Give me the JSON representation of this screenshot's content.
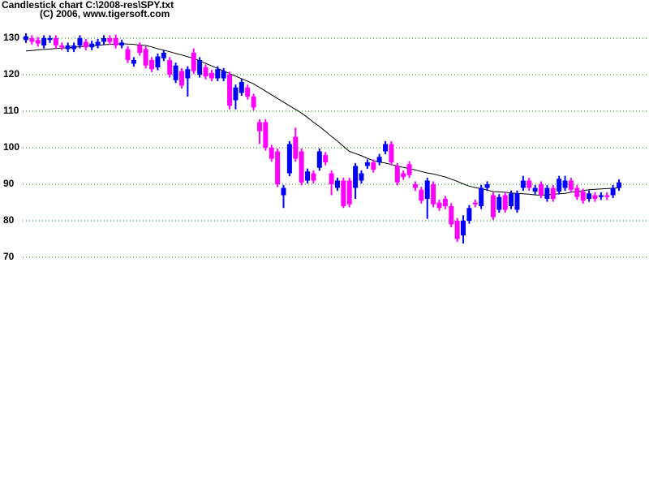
{
  "chart_data": {
    "type": "candlestick",
    "title": "Candlestick chart C:\\2008-res\\SPY.txt",
    "subtitle": "(C) 2006, www.tigersoft.com",
    "up_color": "#0000ff",
    "down_color": "#ff00ff",
    "ma_color": "#000000",
    "grid": true,
    "grid_color": "#008000",
    "ylim": [
      70,
      130
    ],
    "yticks": [
      70,
      80,
      90,
      100,
      110,
      120,
      130
    ],
    "open": [
      129.5,
      130,
      129.5,
      128,
      129.5,
      130,
      128,
      127,
      127,
      128,
      129,
      127.5,
      128,
      129,
      130,
      130,
      128,
      127,
      123,
      128,
      127,
      124,
      122,
      124.5,
      124,
      118.5,
      121,
      119,
      126,
      120,
      122,
      120.5,
      119,
      119,
      120,
      113,
      115,
      116.5,
      114,
      107,
      107,
      100,
      99,
      87,
      93,
      103,
      99,
      91,
      93,
      94.5,
      98,
      93,
      89,
      91,
      91,
      89,
      91,
      95,
      96,
      96,
      99,
      101,
      95,
      93,
      95.5,
      90,
      88.5,
      86,
      90,
      85,
      86,
      84,
      80,
      76,
      80,
      85,
      84,
      89,
      87,
      83,
      87,
      84,
      83,
      89,
      91,
      88,
      90,
      86,
      89,
      88,
      89,
      91,
      89,
      88,
      86,
      87,
      86.5,
      87,
      87,
      89
    ],
    "high": [
      131.3,
      130.8,
      130.3,
      130.8,
      130.8,
      130.8,
      128.8,
      128.8,
      128.8,
      130.8,
      129.8,
      129.3,
      129.8,
      130.8,
      130.8,
      131,
      129.6,
      127.8,
      124.8,
      128.8,
      127.8,
      124.8,
      125.8,
      126.8,
      124.8,
      123.3,
      121.8,
      122.3,
      127.2,
      124.8,
      122.8,
      121.3,
      122.3,
      121.8,
      120.8,
      117.3,
      118.8,
      117.3,
      114.8,
      107.8,
      107.8,
      100.8,
      99.8,
      89.8,
      101.8,
      105.5,
      99.8,
      94.3,
      93.8,
      99.8,
      98.8,
      93.8,
      91.8,
      91.8,
      91.8,
      95.8,
      93.8,
      96.8,
      96.8,
      98.3,
      101.8,
      101.8,
      95.8,
      93.8,
      96.3,
      90.8,
      89.3,
      91.8,
      90.8,
      85.8,
      86.8,
      84.8,
      80.8,
      81.5,
      84.3,
      85.8,
      89.8,
      90.8,
      87.8,
      87.3,
      87.8,
      88.3,
      88.3,
      92.3,
      91.8,
      89.8,
      90.8,
      89.8,
      89.8,
      92.3,
      92.3,
      91.8,
      89.8,
      88.8,
      88.3,
      87.8,
      87.8,
      87.8,
      89.8,
      91.3
    ],
    "low": [
      128.7,
      128.2,
      127.7,
      127.2,
      128.7,
      127.2,
      126.7,
      126.2,
      126.2,
      127.2,
      126.7,
      126.7,
      127.2,
      128.2,
      128.2,
      127.2,
      127.2,
      123.2,
      122.2,
      125.2,
      121.7,
      120.7,
      121.2,
      123.7,
      119.2,
      117.7,
      116.2,
      114,
      120.2,
      119.2,
      118.7,
      118.2,
      118.2,
      118.2,
      110.5,
      110.5,
      114.2,
      113.2,
      110.2,
      101,
      99.2,
      96.2,
      89.2,
      83.5,
      92.2,
      96.2,
      89.7,
      90.2,
      90.2,
      93.7,
      95.2,
      87,
      88.2,
      83.5,
      83.7,
      86,
      90.2,
      94.2,
      93.2,
      95.2,
      98.2,
      95.2,
      89.7,
      91.2,
      91.7,
      88.2,
      84.7,
      80.5,
      83.7,
      82.7,
      83.2,
      78.2,
      74.2,
      73.8,
      79.2,
      83.7,
      83.2,
      88.2,
      80.2,
      82.2,
      82.2,
      83.2,
      82.2,
      88.2,
      88.2,
      87.2,
      86.2,
      85.2,
      85.2,
      87.2,
      88.2,
      87.7,
      85.7,
      84.7,
      85.2,
      85.2,
      85.7,
      85.7,
      86.2,
      88.2
    ],
    "close": [
      130.5,
      129,
      128.5,
      130,
      130,
      128,
      127.5,
      128,
      128,
      130,
      127.5,
      128.5,
      129,
      130,
      129,
      128,
      128.8,
      124,
      124,
      126,
      122.5,
      121.5,
      125,
      126,
      120,
      122.5,
      117,
      121.5,
      121,
      124,
      119.5,
      119,
      121.5,
      121,
      111.5,
      116.5,
      118,
      114,
      111,
      104.5,
      100,
      97,
      90,
      89,
      101,
      97,
      90.5,
      93.5,
      91,
      99,
      96,
      90,
      91,
      84,
      84.5,
      95,
      93,
      96,
      94,
      97.5,
      101,
      96,
      90.5,
      92,
      92.5,
      89,
      85.5,
      91,
      84.5,
      83.5,
      84,
      79,
      75,
      80,
      83.5,
      84.5,
      89,
      90,
      81,
      86.5,
      83,
      87.5,
      87.5,
      91,
      89,
      89,
      87,
      89,
      86,
      91.5,
      91,
      88.5,
      86.5,
      85.5,
      87.5,
      86,
      87,
      86.5,
      89,
      90.5
    ],
    "moving_average": [
      126.5,
      126.6,
      126.8,
      126.9,
      127.0,
      127.2,
      127.3,
      127.4,
      127.5,
      127.7,
      127.8,
      127.9,
      128.0,
      128.2,
      128.3,
      128.4,
      128.5,
      128.4,
      128.3,
      128.1,
      128.0,
      127.6,
      127.1,
      126.7,
      126.3,
      125.8,
      125.4,
      124.9,
      124.5,
      123.8,
      123.1,
      122.4,
      121.7,
      121.0,
      120.3,
      119.6,
      118.9,
      118.2,
      117.5,
      116.5,
      115.5,
      114.5,
      113.5,
      112.5,
      111.5,
      110.5,
      109.5,
      108.3,
      107.0,
      105.8,
      104.5,
      103.1,
      101.8,
      100.4,
      99.0,
      98.4,
      97.8,
      97.1,
      96.5,
      96.1,
      95.8,
      95.4,
      95.0,
      94.6,
      94.3,
      93.9,
      93.5,
      93.1,
      92.8,
      92.4,
      92.0,
      91.4,
      90.8,
      90.1,
      89.5,
      89.1,
      88.8,
      88.4,
      88.0,
      87.9,
      87.8,
      87.6,
      87.5,
      87.4,
      87.3,
      87.1,
      87.0,
      87.1,
      87.3,
      87.4,
      87.5,
      87.8,
      88.0,
      88.3,
      88.5,
      88.6,
      88.7,
      88.8,
      88.9,
      89.0
    ]
  }
}
